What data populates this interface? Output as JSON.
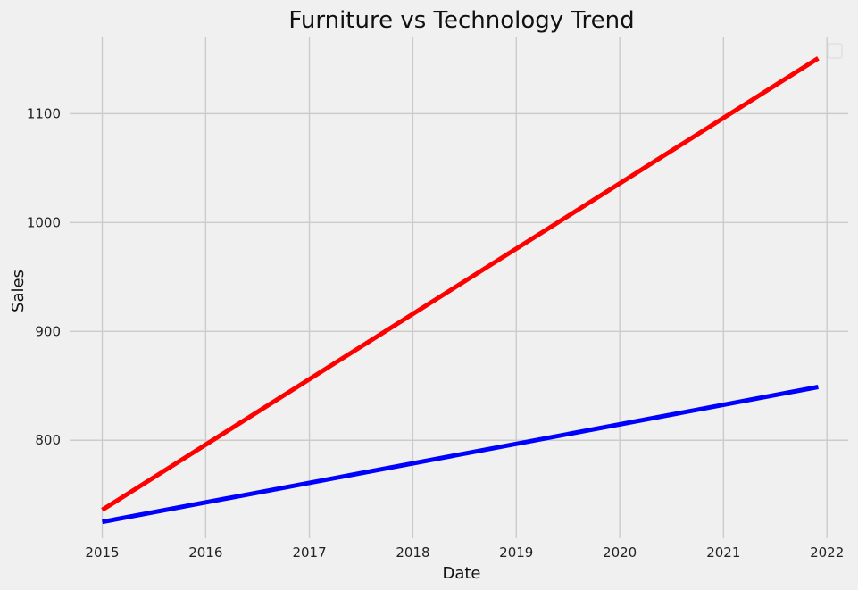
{
  "chart_data": {
    "type": "line",
    "title": "Furniture vs Technology Trend",
    "xlabel": "Date",
    "ylabel": "Sales",
    "x_ticks": [
      "2015",
      "2016",
      "2017",
      "2018",
      "2019",
      "2020",
      "2021",
      "2022"
    ],
    "y_ticks": [
      "800",
      "900",
      "1000",
      "1100"
    ],
    "xlim": [
      "2014-09-08",
      "2022-03-17"
    ],
    "ylim": [
      710,
      1170
    ],
    "grid": true,
    "legend_placement": "top-right",
    "legend_entries": [],
    "series": [
      {
        "color": "#ff0000",
        "x": [
          "2015-01-01",
          "2021-12-01"
        ],
        "values": [
          736,
          1151
        ]
      },
      {
        "color": "#0000ff",
        "x": [
          "2015-01-01",
          "2021-12-01"
        ],
        "values": [
          725,
          849
        ]
      }
    ]
  }
}
